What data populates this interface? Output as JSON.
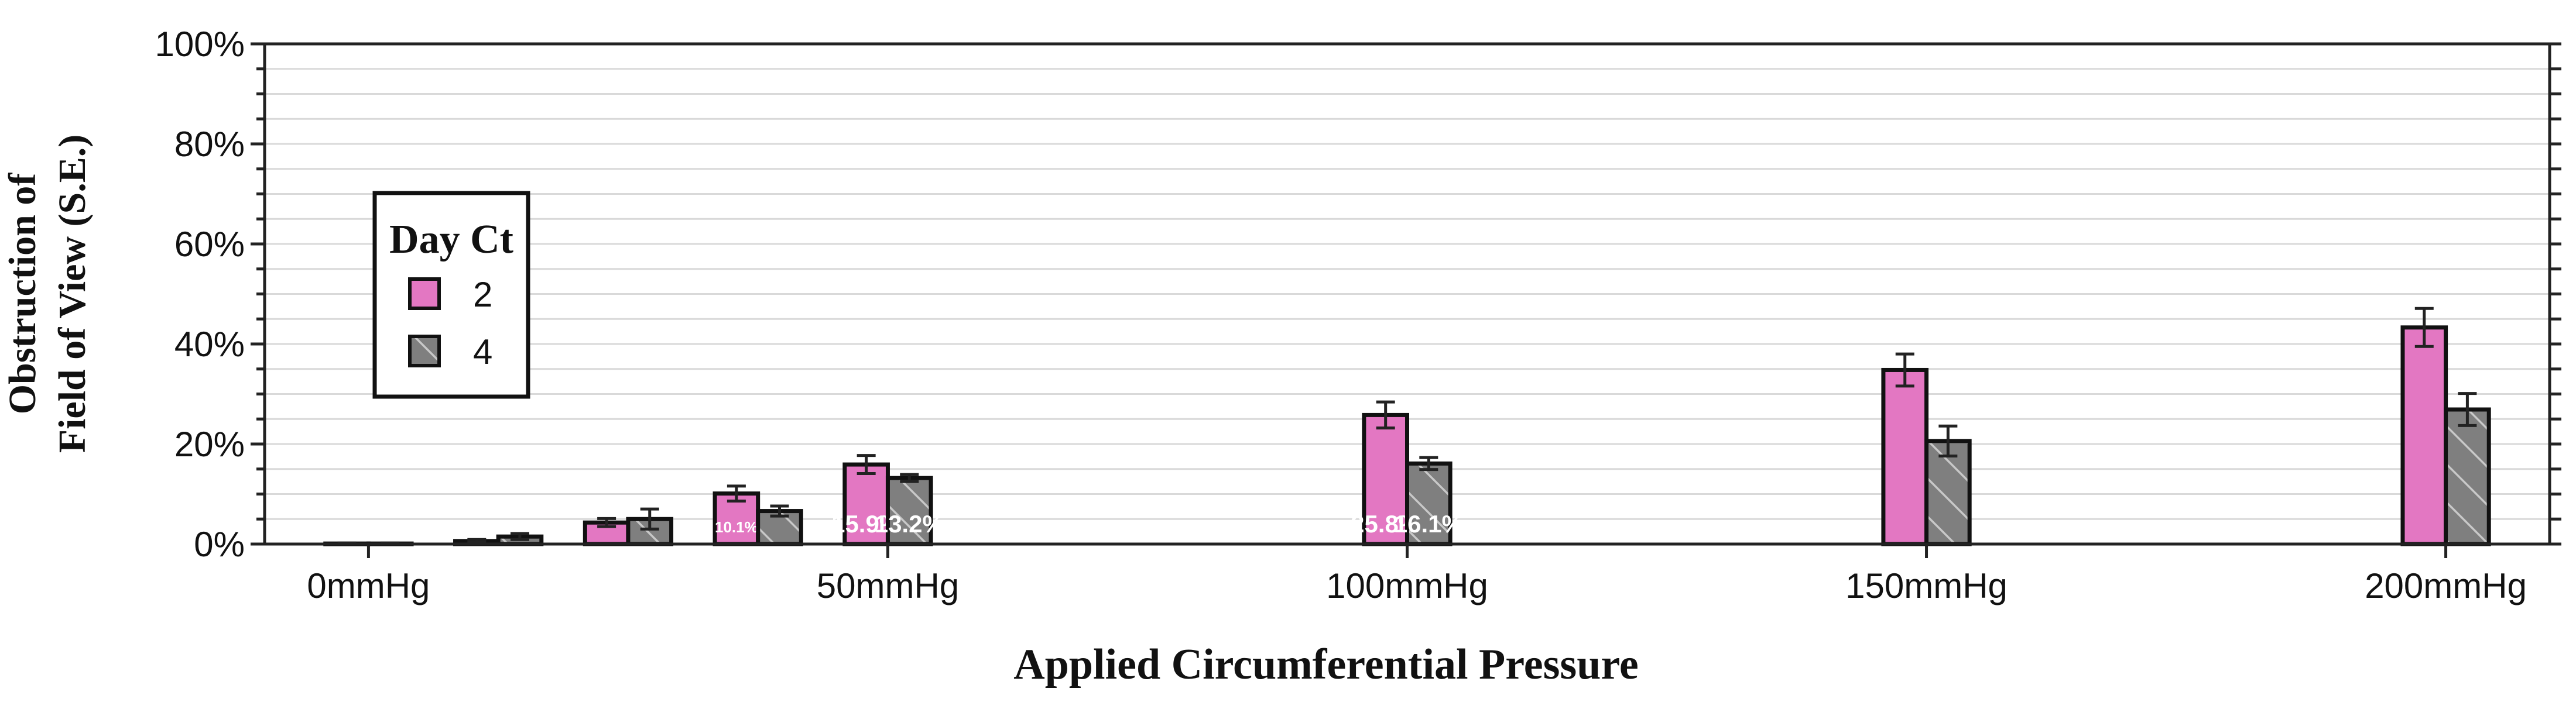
{
  "chart_data": {
    "type": "bar",
    "xlabel": "Applied Circumferential Pressure",
    "ylabel_lines": [
      "Obstruction of",
      "Field of View (S.E.)"
    ],
    "ylim": [
      0,
      100
    ],
    "y_ticks": [
      "0%",
      "20%",
      "40%",
      "60%",
      "80%",
      "100%"
    ],
    "y_tick_values": [
      0,
      20,
      40,
      60,
      80,
      100
    ],
    "x_unit": "mmHg",
    "xlim": [
      -10,
      210
    ],
    "x_tick_values": [
      0,
      50,
      100,
      150,
      200
    ],
    "x_ticks": [
      "0mmHg",
      "50mmHg",
      "100mmHg",
      "150mmHg",
      "200mmHg"
    ],
    "categories": [
      0,
      12.5,
      25,
      37.5,
      50,
      100,
      150,
      200
    ],
    "legend": {
      "title": "Day Ct",
      "position": "upper-left"
    },
    "grid": true,
    "series": [
      {
        "name": "2",
        "color": "#e377c2",
        "pattern": "solid",
        "values": [
          0.1,
          0.6,
          4.3,
          10.1,
          15.9,
          25.8,
          34.8,
          43.3
        ],
        "errors": [
          0.1,
          0.3,
          0.8,
          1.5,
          1.8,
          2.6,
          3.2,
          3.8
        ],
        "labels": [
          "",
          "",
          "",
          "10.1%",
          "15.9%",
          "25.8%",
          "",
          ""
        ]
      },
      {
        "name": "4",
        "color": "#7f7f7f",
        "pattern": "hatched",
        "values": [
          0.1,
          1.5,
          5.0,
          6.6,
          13.2,
          16.1,
          20.6,
          26.9
        ],
        "errors": [
          0.1,
          0.6,
          2.0,
          1.0,
          0.7,
          1.2,
          3.0,
          3.2
        ],
        "labels": [
          "",
          "",
          "",
          "",
          "13.2%",
          "16.1%",
          "",
          ""
        ]
      }
    ]
  }
}
